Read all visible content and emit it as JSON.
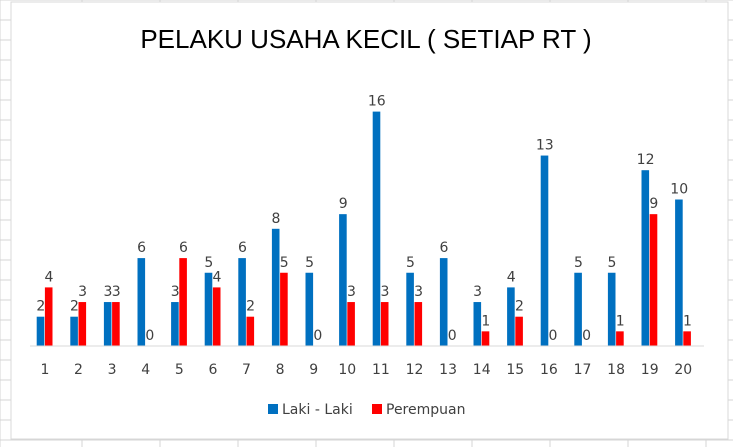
{
  "chart_data": {
    "type": "bar",
    "title": "PELAKU USAHA KECIL ( SETIAP RT )",
    "xlabel": "",
    "ylabel": "",
    "ylim": [
      0,
      16
    ],
    "grid": false,
    "legend_position": "bottom",
    "categories": [
      "1",
      "2",
      "3",
      "4",
      "5",
      "6",
      "7",
      "8",
      "9",
      "10",
      "11",
      "12",
      "13",
      "14",
      "15",
      "16",
      "17",
      "18",
      "19",
      "20"
    ],
    "series": [
      {
        "name": "Laki - Laki",
        "color": "#0070c0",
        "values": [
          2,
          2,
          3,
          6,
          3,
          5,
          6,
          8,
          5,
          9,
          16,
          5,
          6,
          3,
          4,
          13,
          5,
          5,
          12,
          10
        ]
      },
      {
        "name": "Perempuan",
        "color": "#ff0000",
        "values": [
          4,
          3,
          3,
          0,
          6,
          4,
          2,
          5,
          0,
          3,
          3,
          3,
          0,
          1,
          2,
          0,
          0,
          1,
          9,
          1
        ]
      }
    ]
  },
  "colors": {
    "gridline": "#d4d4d4",
    "chart_border": "#d9d9d9",
    "axis_line": "#d9d9d9",
    "text": "#404040"
  }
}
